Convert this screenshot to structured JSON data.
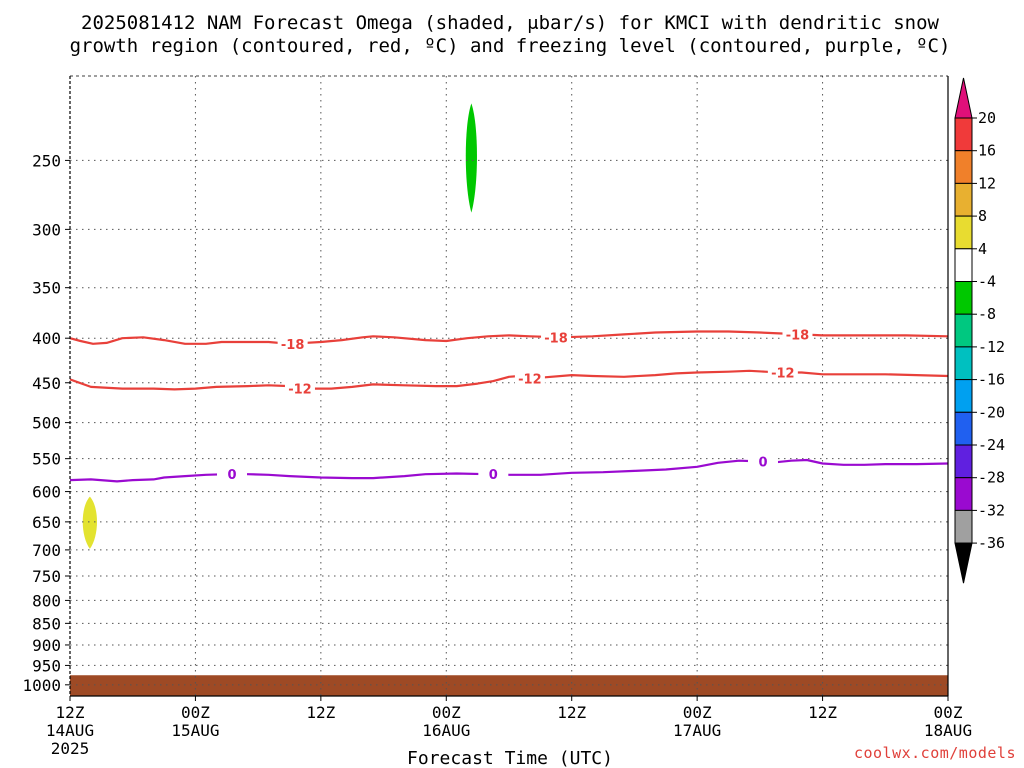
{
  "chart_data": {
    "type": "contour",
    "title_line1": "2025081412 NAM Forecast Omega (shaded, μbar/s) for KMCI with dendritic snow",
    "title_line2": "growth region (contoured, red, ºC) and freezing level (contoured, purple, ºC)",
    "xlabel": "Forecast Time (UTC)",
    "credit": "coolwx.com/models",
    "x_range_hours": [
      0,
      84
    ],
    "y_range_hpa": [
      200,
      1030
    ],
    "y_scale": "log",
    "grid": true,
    "y_ticks": [
      250,
      300,
      350,
      400,
      450,
      500,
      550,
      600,
      650,
      700,
      750,
      800,
      850,
      900,
      950,
      1000
    ],
    "x_ticks": [
      {
        "hour": 0,
        "line1": "12Z",
        "line2": "14AUG",
        "line3": "2025"
      },
      {
        "hour": 12,
        "line1": "00Z",
        "line2": "15AUG",
        "line3": ""
      },
      {
        "hour": 24,
        "line1": "12Z",
        "line2": "",
        "line3": ""
      },
      {
        "hour": 36,
        "line1": "00Z",
        "line2": "16AUG",
        "line3": ""
      },
      {
        "hour": 48,
        "line1": "12Z",
        "line2": "",
        "line3": ""
      },
      {
        "hour": 60,
        "line1": "00Z",
        "line2": "17AUG",
        "line3": ""
      },
      {
        "hour": 72,
        "line1": "12Z",
        "line2": "",
        "line3": ""
      },
      {
        "hour": 84,
        "line1": "00Z",
        "line2": "18AUG",
        "line3": ""
      }
    ],
    "ground_level_hpa": 975,
    "ground_color": "#9e4a25",
    "contours": [
      {
        "level": "-18",
        "color": "#e8403a",
        "points": [
          [
            0,
            400
          ],
          [
            1,
            403
          ],
          [
            2.2,
            406
          ],
          [
            3.5,
            405
          ],
          [
            5,
            400
          ],
          [
            7,
            399
          ],
          [
            9,
            402
          ],
          [
            11,
            406
          ],
          [
            13,
            406
          ],
          [
            14.5,
            404
          ],
          [
            17,
            404
          ],
          [
            19,
            404
          ],
          [
            21,
            406
          ],
          [
            24,
            404
          ],
          [
            26,
            402
          ],
          [
            28,
            399
          ],
          [
            29,
            398
          ],
          [
            31,
            399
          ],
          [
            34,
            402
          ],
          [
            36,
            403
          ],
          [
            38,
            400
          ],
          [
            40,
            398
          ],
          [
            42,
            397
          ],
          [
            44,
            398
          ],
          [
            47,
            399
          ],
          [
            50,
            398
          ],
          [
            53,
            396
          ],
          [
            56,
            394
          ],
          [
            60,
            393
          ],
          [
            63,
            393
          ],
          [
            66,
            394
          ],
          [
            70,
            396
          ],
          [
            72,
            397
          ],
          [
            75,
            397
          ],
          [
            80,
            397
          ],
          [
            84,
            398
          ]
        ],
        "labels": [
          {
            "hour": 21.3,
            "p": 406
          },
          {
            "hour": 46.5,
            "p": 399
          },
          {
            "hour": 69.6,
            "p": 396
          }
        ]
      },
      {
        "level": "-12",
        "color": "#e8403a",
        "points": [
          [
            0,
            446
          ],
          [
            2,
            455
          ],
          [
            5,
            457
          ],
          [
            8,
            457
          ],
          [
            10,
            458
          ],
          [
            12,
            457
          ],
          [
            14,
            455
          ],
          [
            17,
            454
          ],
          [
            19,
            453
          ],
          [
            21,
            454
          ],
          [
            23,
            457
          ],
          [
            25,
            457
          ],
          [
            27,
            455
          ],
          [
            29,
            452
          ],
          [
            32,
            453
          ],
          [
            35,
            454
          ],
          [
            37,
            454
          ],
          [
            39,
            451
          ],
          [
            40.5,
            448
          ],
          [
            42,
            443
          ],
          [
            43,
            442
          ],
          [
            45,
            444
          ],
          [
            48,
            441
          ],
          [
            50,
            442
          ],
          [
            53,
            443
          ],
          [
            56,
            441
          ],
          [
            58,
            439
          ],
          [
            60,
            438
          ],
          [
            63,
            437
          ],
          [
            65,
            436
          ],
          [
            66.5,
            437
          ],
          [
            68,
            438
          ],
          [
            70,
            438
          ],
          [
            72,
            440
          ],
          [
            75,
            440
          ],
          [
            78,
            440
          ],
          [
            81,
            441
          ],
          [
            84,
            442
          ]
        ],
        "labels": [
          {
            "hour": 22,
            "p": 457
          },
          {
            "hour": 44,
            "p": 445
          },
          {
            "hour": 68.2,
            "p": 438
          }
        ]
      },
      {
        "level": "0",
        "color": "#9a0ad0",
        "points": [
          [
            0,
            582
          ],
          [
            2,
            581
          ],
          [
            4.5,
            584
          ],
          [
            6,
            582
          ],
          [
            8,
            581
          ],
          [
            9,
            578
          ],
          [
            11,
            576
          ],
          [
            13,
            574
          ],
          [
            15,
            573
          ],
          [
            17,
            573
          ],
          [
            19,
            574
          ],
          [
            21,
            576
          ],
          [
            24,
            578
          ],
          [
            27,
            579
          ],
          [
            29,
            579
          ],
          [
            32,
            576
          ],
          [
            34,
            573
          ],
          [
            37,
            572
          ],
          [
            40,
            573
          ],
          [
            42,
            574
          ],
          [
            45,
            574
          ],
          [
            48,
            571
          ],
          [
            51,
            570
          ],
          [
            54,
            568
          ],
          [
            57,
            566
          ],
          [
            60,
            562
          ],
          [
            62,
            556
          ],
          [
            64,
            553
          ],
          [
            66,
            554
          ],
          [
            67,
            556
          ],
          [
            69,
            553
          ],
          [
            70.5,
            552
          ],
          [
            72,
            557
          ],
          [
            74,
            559
          ],
          [
            76,
            559
          ],
          [
            78,
            558
          ],
          [
            81,
            558
          ],
          [
            84,
            557
          ]
        ],
        "labels": [
          {
            "hour": 15.5,
            "p": 573
          },
          {
            "hour": 40.5,
            "p": 573
          },
          {
            "hour": 66.3,
            "p": 554
          }
        ]
      }
    ],
    "shaded_regions": [
      {
        "value_bin": "-8 to -4",
        "color": "#00c800",
        "hour_center": 38.4,
        "hour_halfwidth": 0.55,
        "p_top": 215,
        "p_bottom": 287
      },
      {
        "value_bin": "4 to 8",
        "color": "#e3e330",
        "hour_center": 1.9,
        "hour_halfwidth": 0.7,
        "p_top": 608,
        "p_bottom": 698
      }
    ],
    "colorbar": {
      "labels": [
        "20",
        "16",
        "12",
        "8",
        "4",
        "-4",
        "-8",
        "-12",
        "-16",
        "-20",
        "-24",
        "-28",
        "-32",
        "-36"
      ],
      "colors": [
        "#f03a3a",
        "#f0802a",
        "#e8b030",
        "#e8dc30",
        "#ffffff",
        "#00c800",
        "#00c880",
        "#00c0c0",
        "#00a0f0",
        "#2060f0",
        "#6020e0",
        "#9a0ad0",
        "#a0a0a0"
      ],
      "top_arrow_color": "#e0107a",
      "bottom_arrow_color": "#000000"
    }
  }
}
